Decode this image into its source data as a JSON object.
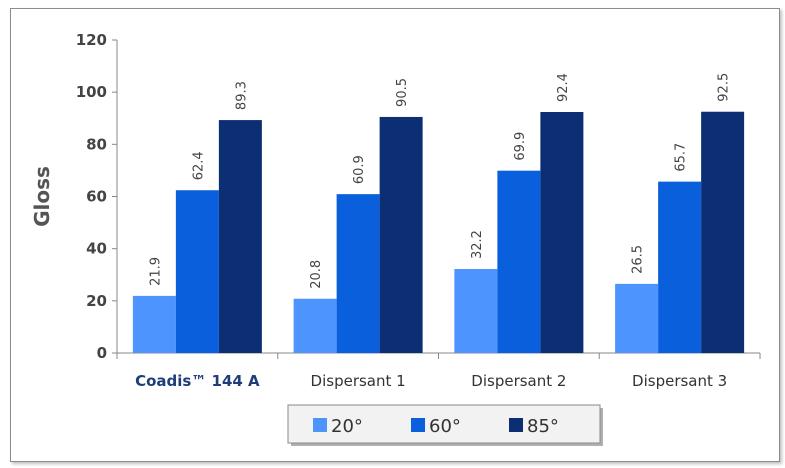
{
  "chart_data": {
    "type": "bar",
    "ylabel": "Gloss",
    "ylim": [
      0,
      120
    ],
    "yticks": [
      0,
      20,
      40,
      60,
      80,
      100,
      120
    ],
    "grid": false,
    "legend_position": "bottom",
    "categories": [
      "Coadis™ 144 A",
      "Dispersant 1",
      "Dispersant 2",
      "Dispersant 3"
    ],
    "series": [
      {
        "name": "20°",
        "color": "#4d94ff",
        "values": [
          21.9,
          20.8,
          32.2,
          26.5
        ]
      },
      {
        "name": "60°",
        "color": "#0a5fdc",
        "values": [
          62.4,
          60.9,
          69.9,
          65.7
        ]
      },
      {
        "name": "85°",
        "color": "#0c2f73",
        "values": [
          89.3,
          90.5,
          92.4,
          92.5
        ]
      }
    ]
  }
}
